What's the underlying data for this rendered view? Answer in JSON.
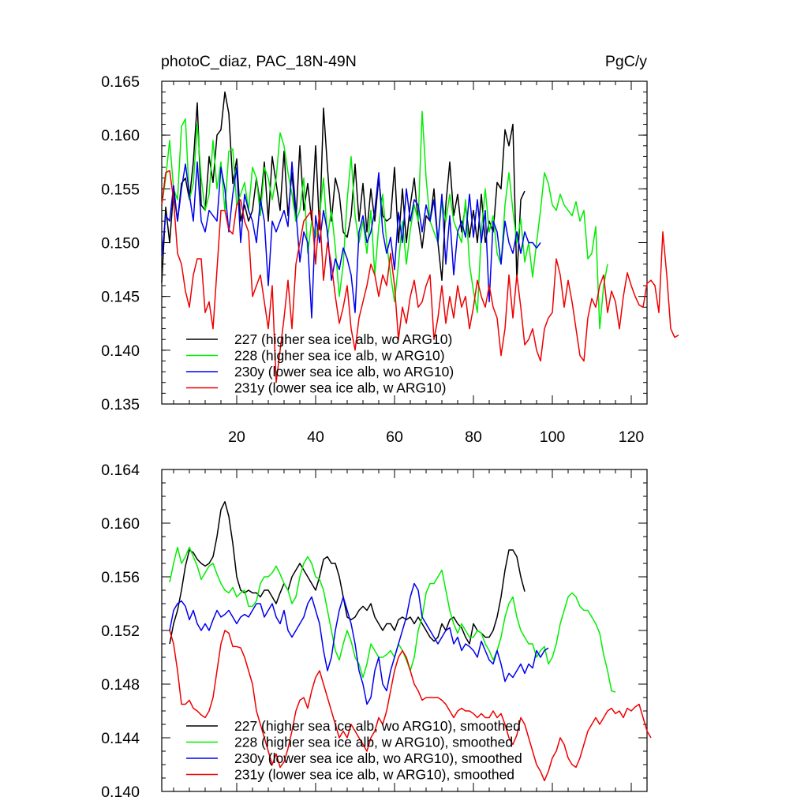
{
  "colors": {
    "black": "#000000",
    "green": "#00ee00",
    "blue": "#0000ee",
    "red": "#ee0000"
  },
  "chart_data": [
    {
      "type": "line",
      "title_left": "photoC_diaz, PAC_18N-49N",
      "title_right": "PgC/y",
      "xlim": [
        1,
        124
      ],
      "ylim": [
        0.135,
        0.165
      ],
      "yticks": [
        0.135,
        0.14,
        0.145,
        0.15,
        0.155,
        0.16,
        0.165
      ],
      "ytick_labels": [
        "0.135",
        "0.140",
        "0.145",
        "0.150",
        "0.155",
        "0.160",
        "0.165"
      ],
      "yminor": 0.001,
      "xticks": [
        20,
        40,
        60,
        80,
        100,
        120
      ],
      "xtick_labels": [
        "20",
        "40",
        "60",
        "80",
        "100",
        "120"
      ],
      "xminor": 4,
      "legend_position": "bottom-left",
      "series": [
        {
          "name": "227 (higher sea ice alb, wo ARG10)",
          "color": "#000000",
          "start": 1,
          "values": [
            0.1463,
            0.1533,
            0.15,
            0.1548,
            0.152,
            0.1555,
            0.156,
            0.154,
            0.1575,
            0.163,
            0.1535,
            0.153,
            0.158,
            0.1556,
            0.16,
            0.1605,
            0.164,
            0.162,
            0.1555,
            0.1578,
            0.152,
            0.1535,
            0.152,
            0.153,
            0.156,
            0.1535,
            0.1575,
            0.152,
            0.158,
            0.1555,
            0.153,
            0.1585,
            0.1525,
            0.1565,
            0.152,
            0.159,
            0.153,
            0.1555,
            0.152,
            0.159,
            0.1512,
            0.1625,
            0.157,
            0.152,
            0.156,
            0.1545,
            0.151,
            0.1505,
            0.1525,
            0.1573,
            0.152,
            0.1555,
            0.151,
            0.155,
            0.152,
            0.156,
            0.1525,
            0.152,
            0.1523,
            0.157,
            0.15,
            0.155,
            0.15,
            0.1535,
            0.156,
            0.152,
            0.1495,
            0.1525,
            0.152,
            0.155,
            0.15,
            0.1465,
            0.1535,
            0.1575,
            0.1525,
            0.1545,
            0.151,
            0.1535,
            0.1505,
            0.153,
            0.15,
            0.1545,
            0.15,
            0.152,
            0.151,
            0.1556,
            0.155,
            0.1605,
            0.159,
            0.161,
            0.1465,
            0.154,
            0.1548
          ]
        },
        {
          "name": "228 (higher sea ice alb, w ARG10)",
          "color": "#00ee00",
          "start": 1,
          "values": [
            0.1535,
            0.156,
            0.1595,
            0.155,
            0.154,
            0.1608,
            0.1615,
            0.154,
            0.1555,
            0.161,
            0.156,
            0.153,
            0.1545,
            0.1595,
            0.155,
            0.1575,
            0.153,
            0.1585,
            0.1587,
            0.1535,
            0.1545,
            0.1556,
            0.153,
            0.157,
            0.156,
            0.1525,
            0.157,
            0.156,
            0.154,
            0.156,
            0.1602,
            0.159,
            0.1565,
            0.1545,
            0.152,
            0.153,
            0.156,
            0.149,
            0.152,
            0.1505,
            0.1525,
            0.156,
            0.1505,
            0.153,
            0.1495,
            0.145,
            0.148,
            0.154,
            0.158,
            0.1525,
            0.15,
            0.152,
            0.149,
            0.153,
            0.147,
            0.1515,
            0.1545,
            0.15,
            0.147,
            0.1445,
            0.148,
            0.152,
            0.148,
            0.1512,
            0.1535,
            0.152,
            0.1622,
            0.156,
            0.152,
            0.151,
            0.15,
            0.154,
            0.152,
            0.1545,
            0.152,
            0.151,
            0.15,
            0.154,
            0.148,
            0.1455,
            0.1435,
            0.151,
            0.155,
            0.151,
            0.1525,
            0.149,
            0.148,
            0.1535,
            0.1565,
            0.153,
            0.15,
            0.1522,
            0.1482,
            0.15,
            0.1468,
            0.15,
            0.153,
            0.1565,
            0.1555,
            0.1535,
            0.153,
            0.1545,
            0.1535,
            0.153,
            0.1525,
            0.1538,
            0.152,
            0.153,
            0.1485,
            0.149,
            0.1515,
            0.142,
            0.146,
            0.148
          ]
        },
        {
          "name": "230y (lower sea ice alb, wo ARG10)",
          "color": "#0000ee",
          "start": 1,
          "values": [
            0.1488,
            0.1525,
            0.152,
            0.1553,
            0.152,
            0.155,
            0.1573,
            0.1545,
            0.152,
            0.1575,
            0.152,
            0.151,
            0.153,
            0.1525,
            0.152,
            0.157,
            0.155,
            0.151,
            0.1545,
            0.157,
            0.15,
            0.1545,
            0.153,
            0.152,
            0.15,
            0.154,
            0.152,
            0.146,
            0.152,
            0.151,
            0.152,
            0.153,
            0.1515,
            0.1575,
            0.153,
            0.1482,
            0.151,
            0.15,
            0.143,
            0.1525,
            0.15,
            0.153,
            0.151,
            0.1465,
            0.1485,
            0.1475,
            0.1495,
            0.1485,
            0.147,
            0.1435,
            0.151,
            0.1525,
            0.15,
            0.151,
            0.153,
            0.1565,
            0.151,
            0.149,
            0.1505,
            0.1475,
            0.1528,
            0.15,
            0.155,
            0.152,
            0.154,
            0.1535,
            0.151,
            0.1535,
            0.152,
            0.154,
            0.15,
            0.1545,
            0.148,
            0.1525,
            0.147,
            0.151,
            0.152,
            0.1505,
            0.1545,
            0.1505,
            0.154,
            0.15,
            0.153,
            0.1445,
            0.152,
            0.151,
            0.148,
            0.152,
            0.15,
            0.149,
            0.151,
            0.149,
            0.151,
            0.15,
            0.15,
            0.1495,
            0.15
          ]
        },
        {
          "name": "231y (lower sea ice alb, w ARG10)",
          "color": "#ee0000",
          "start": 1,
          "values": [
            0.1535,
            0.1565,
            0.1567,
            0.154,
            0.149,
            0.148,
            0.1455,
            0.144,
            0.147,
            0.1485,
            0.1485,
            0.1435,
            0.1445,
            0.142,
            0.1475,
            0.153,
            0.153,
            0.1512,
            0.1508,
            0.1535,
            0.154,
            0.152,
            0.151,
            0.145,
            0.146,
            0.147,
            0.1445,
            0.142,
            0.146,
            0.137,
            0.14,
            0.143,
            0.1465,
            0.142,
            0.148,
            0.15,
            0.152,
            0.1525,
            0.153,
            0.148,
            0.153,
            0.1465,
            0.15,
            0.148,
            0.145,
            0.1425,
            0.144,
            0.146,
            0.142,
            0.14,
            0.143,
            0.1445,
            0.146,
            0.148,
            0.147,
            0.145,
            0.147,
            0.146,
            0.149,
            0.146,
            0.141,
            0.144,
            0.1425,
            0.145,
            0.1465,
            0.144,
            0.1445,
            0.146,
            0.147,
            0.141,
            0.143,
            0.146,
            0.1425,
            0.145,
            0.143,
            0.146,
            0.144,
            0.145,
            0.142,
            0.144,
            0.1465,
            0.145,
            0.144,
            0.146,
            0.144,
            0.143,
            0.1395,
            0.142,
            0.147,
            0.143,
            0.147,
            0.144,
            0.1405,
            0.141,
            0.142,
            0.14,
            0.139,
            0.142,
            0.143,
            0.1435,
            0.1485,
            0.147,
            0.144,
            0.1465,
            0.1445,
            0.142,
            0.1395,
            0.139,
            0.143,
            0.1448,
            0.144,
            0.146,
            0.147,
            0.1435,
            0.1455,
            0.1445,
            0.142,
            0.145,
            0.1472,
            0.146,
            0.145,
            0.1442,
            0.144,
            0.1462,
            0.1465,
            0.146,
            0.1435,
            0.151,
            0.147,
            0.142,
            0.1412,
            0.1414
          ]
        }
      ]
    },
    {
      "type": "line",
      "xlim": [
        1,
        124
      ],
      "ylim": [
        0.14,
        0.164
      ],
      "yticks": [
        0.14,
        0.144,
        0.148,
        0.152,
        0.156,
        0.16,
        0.164
      ],
      "ytick_labels": [
        "0.140",
        "0.144",
        "0.148",
        "0.152",
        "0.156",
        "0.160",
        "0.164"
      ],
      "yminor": 0.001,
      "xticks": [
        20,
        40,
        60,
        80,
        100,
        120
      ],
      "xminor": 4,
      "legend_position": "bottom-left",
      "series": [
        {
          "name": "227 (higher sea ice alb, wo ARG10), smoothed",
          "color": "#000000",
          "start": 3,
          "values": [
            0.151,
            0.1525,
            0.1535,
            0.155,
            0.1568,
            0.158,
            0.1578,
            0.1573,
            0.157,
            0.1568,
            0.157,
            0.1575,
            0.159,
            0.161,
            0.1616,
            0.1605,
            0.1585,
            0.156,
            0.155,
            0.1548,
            0.155,
            0.1548,
            0.1548,
            0.1545,
            0.155,
            0.155,
            0.1545,
            0.154,
            0.1548,
            0.1555,
            0.155,
            0.156,
            0.1565,
            0.157,
            0.1565,
            0.156,
            0.1555,
            0.155,
            0.156,
            0.1573,
            0.1575,
            0.157,
            0.157,
            0.156,
            0.1545,
            0.153,
            0.1528,
            0.153,
            0.1535,
            0.1538,
            0.1535,
            0.154,
            0.153,
            0.1525,
            0.152,
            0.1525,
            0.1525,
            0.152,
            0.1528,
            0.153,
            0.1528,
            0.153,
            0.1525,
            0.153,
            0.1525,
            0.152,
            0.1515,
            0.1512,
            0.1515,
            0.1525,
            0.152,
            0.1528,
            0.153,
            0.1525,
            0.1522,
            0.1515,
            0.151,
            0.1525,
            0.152,
            0.1518,
            0.1515,
            0.1515,
            0.152,
            0.153,
            0.1545,
            0.1565,
            0.158,
            0.158,
            0.1575,
            0.156,
            0.1549
          ]
        },
        {
          "name": "228 (higher sea ice alb, w ARG10), smoothed",
          "color": "#00ee00",
          "start": 3,
          "values": [
            0.1556,
            0.157,
            0.1582,
            0.157,
            0.1575,
            0.1582,
            0.1575,
            0.1568,
            0.1558,
            0.1563,
            0.1568,
            0.157,
            0.1562,
            0.1555,
            0.155,
            0.1548,
            0.1552,
            0.1545,
            0.1548,
            0.155,
            0.1538,
            0.1538,
            0.1542,
            0.1555,
            0.156,
            0.156,
            0.1563,
            0.1568,
            0.1562,
            0.1555,
            0.155,
            0.154,
            0.1545,
            0.156,
            0.157,
            0.1575,
            0.157,
            0.156,
            0.1558,
            0.155,
            0.1535,
            0.152,
            0.1505,
            0.1498,
            0.151,
            0.152,
            0.1512,
            0.15,
            0.1495,
            0.1485,
            0.1495,
            0.151,
            0.1505,
            0.15,
            0.15,
            0.1502,
            0.1505,
            0.15,
            0.151,
            0.1505,
            0.1498,
            0.149,
            0.15,
            0.152,
            0.153,
            0.1548,
            0.1555,
            0.1555,
            0.156,
            0.1565,
            0.155,
            0.1535,
            0.1525,
            0.1518,
            0.1525,
            0.152,
            0.1515,
            0.1515,
            0.152,
            0.1518,
            0.151,
            0.1505,
            0.1498,
            0.1505,
            0.1515,
            0.153,
            0.154,
            0.1545,
            0.153,
            0.152,
            0.1515,
            0.151,
            0.151,
            0.15,
            0.1505,
            0.1508,
            0.1495,
            0.15,
            0.151,
            0.1525,
            0.1535,
            0.1545,
            0.1548,
            0.1545,
            0.1538,
            0.1535,
            0.1535,
            0.153,
            0.1525,
            0.1518,
            0.1502,
            0.149,
            0.1475,
            0.1474
          ]
        },
        {
          "name": "230y (lower sea ice alb, wo ARG10), smoothed",
          "color": "#0000ee",
          "start": 3,
          "values": [
            0.152,
            0.1535,
            0.154,
            0.1542,
            0.1538,
            0.1528,
            0.1535,
            0.1525,
            0.152,
            0.1525,
            0.152,
            0.1528,
            0.1535,
            0.153,
            0.1532,
            0.1535,
            0.153,
            0.1525,
            0.153,
            0.1532,
            0.153,
            0.1535,
            0.154,
            0.154,
            0.153,
            0.1535,
            0.154,
            0.153,
            0.1525,
            0.1535,
            0.152,
            0.1515,
            0.152,
            0.1525,
            0.153,
            0.154,
            0.1545,
            0.1535,
            0.1525,
            0.1505,
            0.149,
            0.15,
            0.152,
            0.1535,
            0.1545,
            0.1535,
            0.1525,
            0.151,
            0.149,
            0.148,
            0.1465,
            0.147,
            0.149,
            0.15,
            0.148,
            0.1475,
            0.149,
            0.15,
            0.151,
            0.152,
            0.153,
            0.1545,
            0.1555,
            0.155,
            0.153,
            0.1525,
            0.152,
            0.1515,
            0.151,
            0.1515,
            0.152,
            0.1522,
            0.151,
            0.1515,
            0.1505,
            0.151,
            0.1508,
            0.1505,
            0.15,
            0.1512,
            0.1505,
            0.1498,
            0.1495,
            0.1505,
            0.1495,
            0.1482,
            0.1488,
            0.1485,
            0.149,
            0.1495,
            0.1488,
            0.1495,
            0.1492,
            0.1505,
            0.15,
            0.1505,
            0.1507
          ]
        },
        {
          "name": "231y (lower sea ice alb, w ARG10), smoothed",
          "color": "#ee0000",
          "start": 3,
          "values": [
            0.152,
            0.151,
            0.149,
            0.1465,
            0.1465,
            0.1468,
            0.1462,
            0.146,
            0.1457,
            0.1455,
            0.146,
            0.147,
            0.149,
            0.151,
            0.152,
            0.1518,
            0.1508,
            0.1508,
            0.1507,
            0.15,
            0.149,
            0.148,
            0.146,
            0.145,
            0.144,
            0.143,
            0.142,
            0.1428,
            0.1418,
            0.1422,
            0.1432,
            0.1445,
            0.146,
            0.1468,
            0.147,
            0.1462,
            0.1475,
            0.1485,
            0.149,
            0.148,
            0.147,
            0.146,
            0.145,
            0.144,
            0.1445,
            0.144,
            0.145,
            0.1445,
            0.144,
            0.1435,
            0.143,
            0.144,
            0.1445,
            0.1455,
            0.145,
            0.146,
            0.1475,
            0.149,
            0.15,
            0.1505,
            0.15,
            0.149,
            0.148,
            0.1475,
            0.1468,
            0.147,
            0.147,
            0.147,
            0.147,
            0.1468,
            0.1465,
            0.146,
            0.1455,
            0.146,
            0.1462,
            0.146,
            0.146,
            0.1458,
            0.1455,
            0.1458,
            0.1455,
            0.1455,
            0.146,
            0.1455,
            0.1458,
            0.145,
            0.144,
            0.1435,
            0.1442,
            0.1455,
            0.145,
            0.144,
            0.143,
            0.142,
            0.1415,
            0.1408,
            0.1415,
            0.1425,
            0.143,
            0.144,
            0.1435,
            0.1425,
            0.142,
            0.1418,
            0.1425,
            0.1435,
            0.1445,
            0.145,
            0.1455,
            0.145,
            0.1455,
            0.146,
            0.1462,
            0.1458,
            0.146,
            0.1455,
            0.1462,
            0.146,
            0.1463,
            0.1465,
            0.1455,
            0.1445,
            0.144
          ]
        }
      ]
    }
  ]
}
